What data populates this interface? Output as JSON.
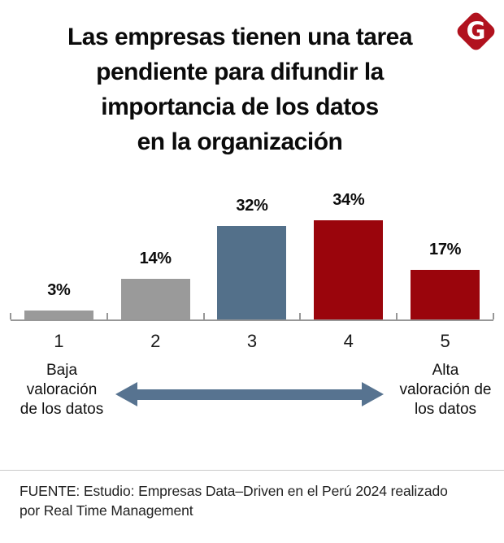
{
  "title": {
    "text": "Las empresas tienen una tarea\npendiente para difundir la\nimportancia de los datos\nen la organización"
  },
  "logo": {
    "letter": "G",
    "bg_color": "#b1121e"
  },
  "chart_data": {
    "type": "bar",
    "title": "Las empresas tienen una tarea pendiente para difundir la importancia de los datos en la organización",
    "categories": [
      "1",
      "2",
      "3",
      "4",
      "5"
    ],
    "values": [
      3,
      14,
      32,
      34,
      17
    ],
    "data_labels": [
      "3%",
      "14%",
      "32%",
      "34%",
      "17%"
    ],
    "bar_colors": [
      "#9a9a9a",
      "#9a9a9a",
      "#53708a",
      "#9a050c",
      "#9a050c"
    ],
    "xlabel": "",
    "ylabel": "",
    "ylim": [
      0,
      34
    ],
    "grid": false,
    "legend": false,
    "axis_color": "#979797",
    "x_axis_annotation": {
      "low": "Baja valoración de los datos",
      "high": "Alta valoración de los datos"
    }
  },
  "annotation": {
    "low": "Baja\nvaloración\nde los datos",
    "high": "Alta\nvaloración de\nlos datos",
    "arrow_color": "#577390"
  },
  "footer": {
    "source": "FUENTE: Estudio: Empresas Data–Driven en el Perú 2024 realizado\n por Real Time Management"
  }
}
